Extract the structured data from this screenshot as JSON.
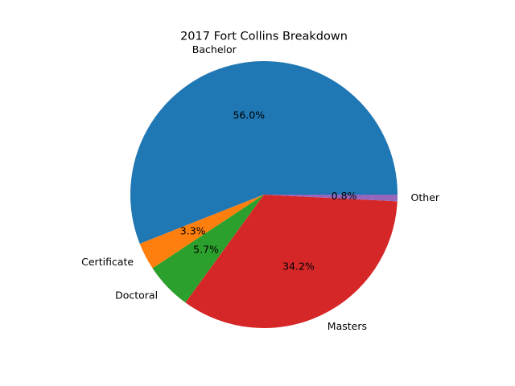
{
  "chart_data": {
    "type": "pie",
    "title": "2017 Fort Collins Breakdown",
    "slices": [
      {
        "label": "Bachelor",
        "percent": 56.0,
        "percent_label": "56.0%",
        "color": "#1f77b4"
      },
      {
        "label": "Certificate",
        "percent": 3.3,
        "percent_label": "3.3%",
        "color": "#ff7f0e"
      },
      {
        "label": "Doctoral",
        "percent": 5.7,
        "percent_label": "5.7%",
        "color": "#2ca02c"
      },
      {
        "label": "Masters",
        "percent": 34.2,
        "percent_label": "34.2%",
        "color": "#d62728"
      },
      {
        "label": "Other",
        "percent": 0.8,
        "percent_label": "0.8%",
        "color": "#9467bd"
      }
    ],
    "start_angle_deg": 0,
    "direction": "counterclockwise",
    "legend": "none"
  }
}
